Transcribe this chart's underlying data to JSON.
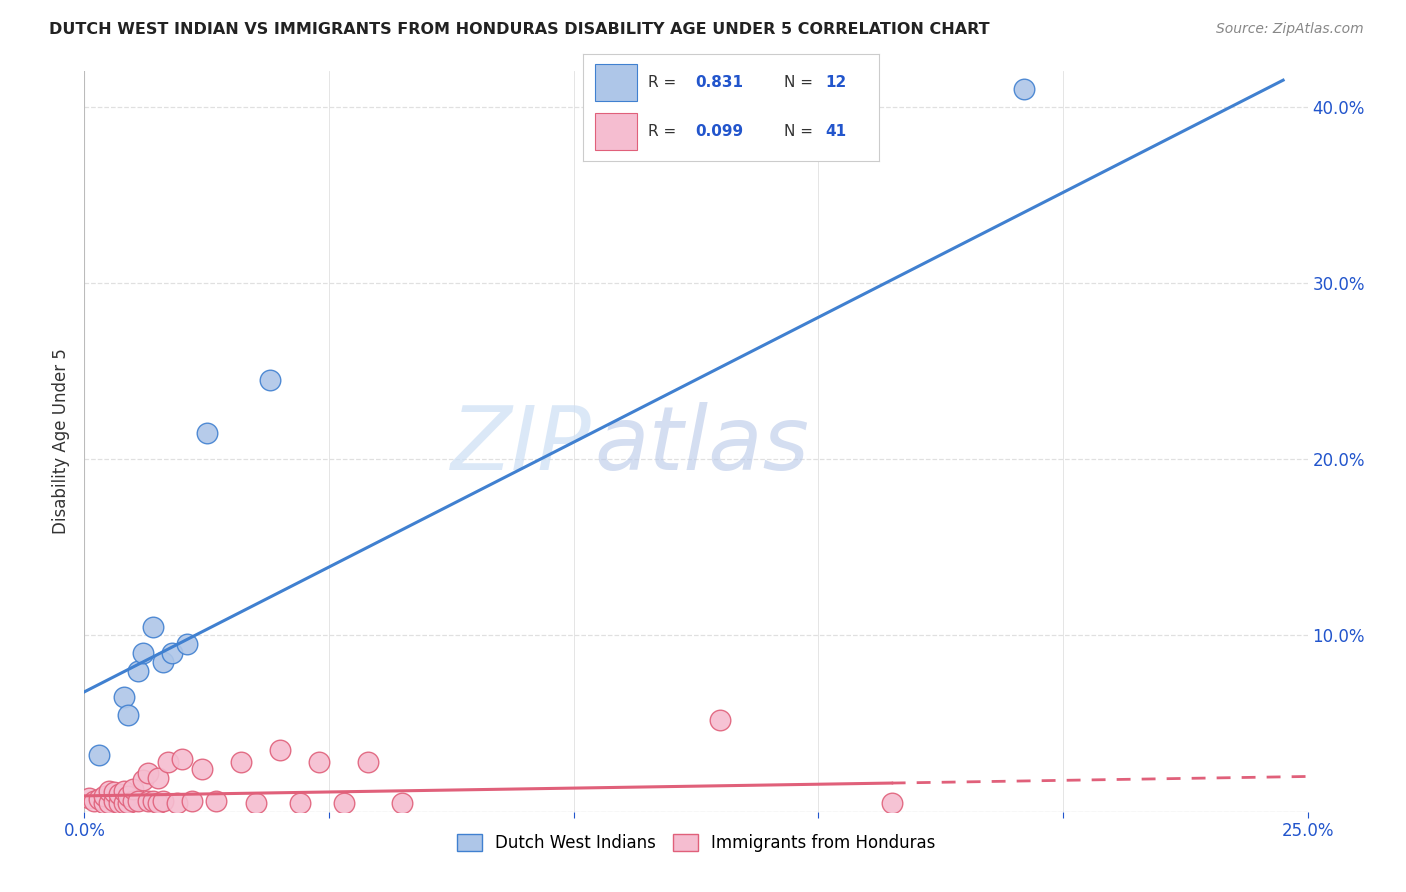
{
  "title": "DUTCH WEST INDIAN VS IMMIGRANTS FROM HONDURAS DISABILITY AGE UNDER 5 CORRELATION CHART",
  "source": "Source: ZipAtlas.com",
  "ylabel": "Disability Age Under 5",
  "xlabel_ticks": [
    "0.0%",
    "",
    "",
    "",
    "",
    "25.0%"
  ],
  "xlabel_vals": [
    0.0,
    0.05,
    0.1,
    0.15,
    0.2,
    0.25
  ],
  "ylabel_right_ticks": [
    "",
    "10.0%",
    "20.0%",
    "30.0%",
    "40.0%"
  ],
  "ylabel_right_vals": [
    0.0,
    0.1,
    0.2,
    0.3,
    0.4
  ],
  "xmin": 0.0,
  "xmax": 0.25,
  "ymin": 0.0,
  "ymax": 0.42,
  "blue_R": 0.831,
  "blue_N": 12,
  "pink_R": 0.099,
  "pink_N": 41,
  "blue_color": "#aec6e8",
  "blue_line_color": "#4080d0",
  "blue_edge_color": "#4080d0",
  "pink_color": "#f5bdd0",
  "pink_line_color": "#e0607a",
  "pink_edge_color": "#e0607a",
  "legend_color": "#2255cc",
  "blue_scatter_x": [
    0.003,
    0.008,
    0.009,
    0.011,
    0.012,
    0.014,
    0.016,
    0.018,
    0.021,
    0.025,
    0.038,
    0.192
  ],
  "blue_scatter_y": [
    0.032,
    0.065,
    0.055,
    0.08,
    0.09,
    0.105,
    0.085,
    0.09,
    0.095,
    0.215,
    0.245,
    0.41
  ],
  "pink_scatter_x": [
    0.001,
    0.002,
    0.003,
    0.004,
    0.004,
    0.005,
    0.005,
    0.006,
    0.006,
    0.007,
    0.007,
    0.008,
    0.008,
    0.009,
    0.009,
    0.01,
    0.01,
    0.011,
    0.012,
    0.013,
    0.013,
    0.014,
    0.015,
    0.015,
    0.016,
    0.017,
    0.019,
    0.02,
    0.022,
    0.024,
    0.027,
    0.032,
    0.035,
    0.04,
    0.044,
    0.048,
    0.053,
    0.058,
    0.065,
    0.13,
    0.165
  ],
  "pink_scatter_y": [
    0.008,
    0.006,
    0.007,
    0.005,
    0.009,
    0.005,
    0.012,
    0.006,
    0.011,
    0.005,
    0.01,
    0.005,
    0.012,
    0.005,
    0.009,
    0.006,
    0.013,
    0.006,
    0.018,
    0.006,
    0.022,
    0.006,
    0.005,
    0.019,
    0.006,
    0.028,
    0.005,
    0.03,
    0.006,
    0.024,
    0.006,
    0.028,
    0.005,
    0.035,
    0.005,
    0.028,
    0.005,
    0.028,
    0.005,
    0.052,
    0.005
  ],
  "blue_line_x0": 0.0,
  "blue_line_y0": 0.068,
  "blue_line_x1": 0.245,
  "blue_line_y1": 0.415,
  "pink_line_x0": 0.0,
  "pink_line_y0": 0.009,
  "pink_line_x1": 0.25,
  "pink_line_y1": 0.02,
  "pink_line_solid_end": 0.165,
  "watermark_zip": "ZIP",
  "watermark_atlas": "atlas",
  "background_color": "#ffffff",
  "grid_color": "#e0e0e0",
  "grid_style": "--"
}
